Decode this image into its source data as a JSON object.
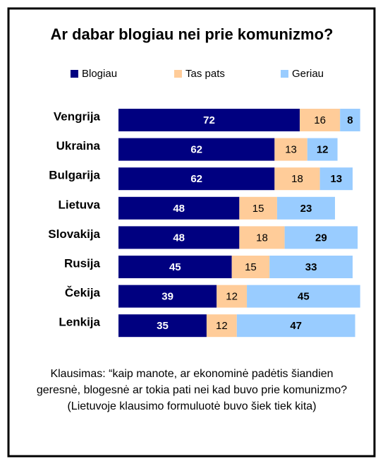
{
  "chart_data": {
    "type": "stacked-bar-horizontal",
    "title": "Ar dabar blogiau nei prie komunizmo?",
    "categories": [
      "Vengrija",
      "Ukraina",
      "Bulgarija",
      "Lietuva",
      "Slovakija",
      "Rusija",
      "Čekija",
      "Lenkija"
    ],
    "series": [
      {
        "name": "Blogiau",
        "color": "#000080",
        "values": [
          72,
          62,
          62,
          48,
          48,
          45,
          39,
          35
        ]
      },
      {
        "name": "Tas pats",
        "color": "#ffcc99",
        "values": [
          16,
          13,
          18,
          15,
          18,
          15,
          12,
          12
        ]
      },
      {
        "name": "Geriau",
        "color": "#99ccff",
        "values": [
          8,
          12,
          13,
          23,
          29,
          33,
          45,
          47
        ]
      }
    ],
    "legend": "top",
    "note": "Klausimas: “kaip manote, ar ekonominė padėtis šiandien  geresnė, blogesnė ar tokia pati nei kad buvo prie komunizmo? (Lietuvoje klausimo formuluotė buvo šiek tiek kita)"
  }
}
